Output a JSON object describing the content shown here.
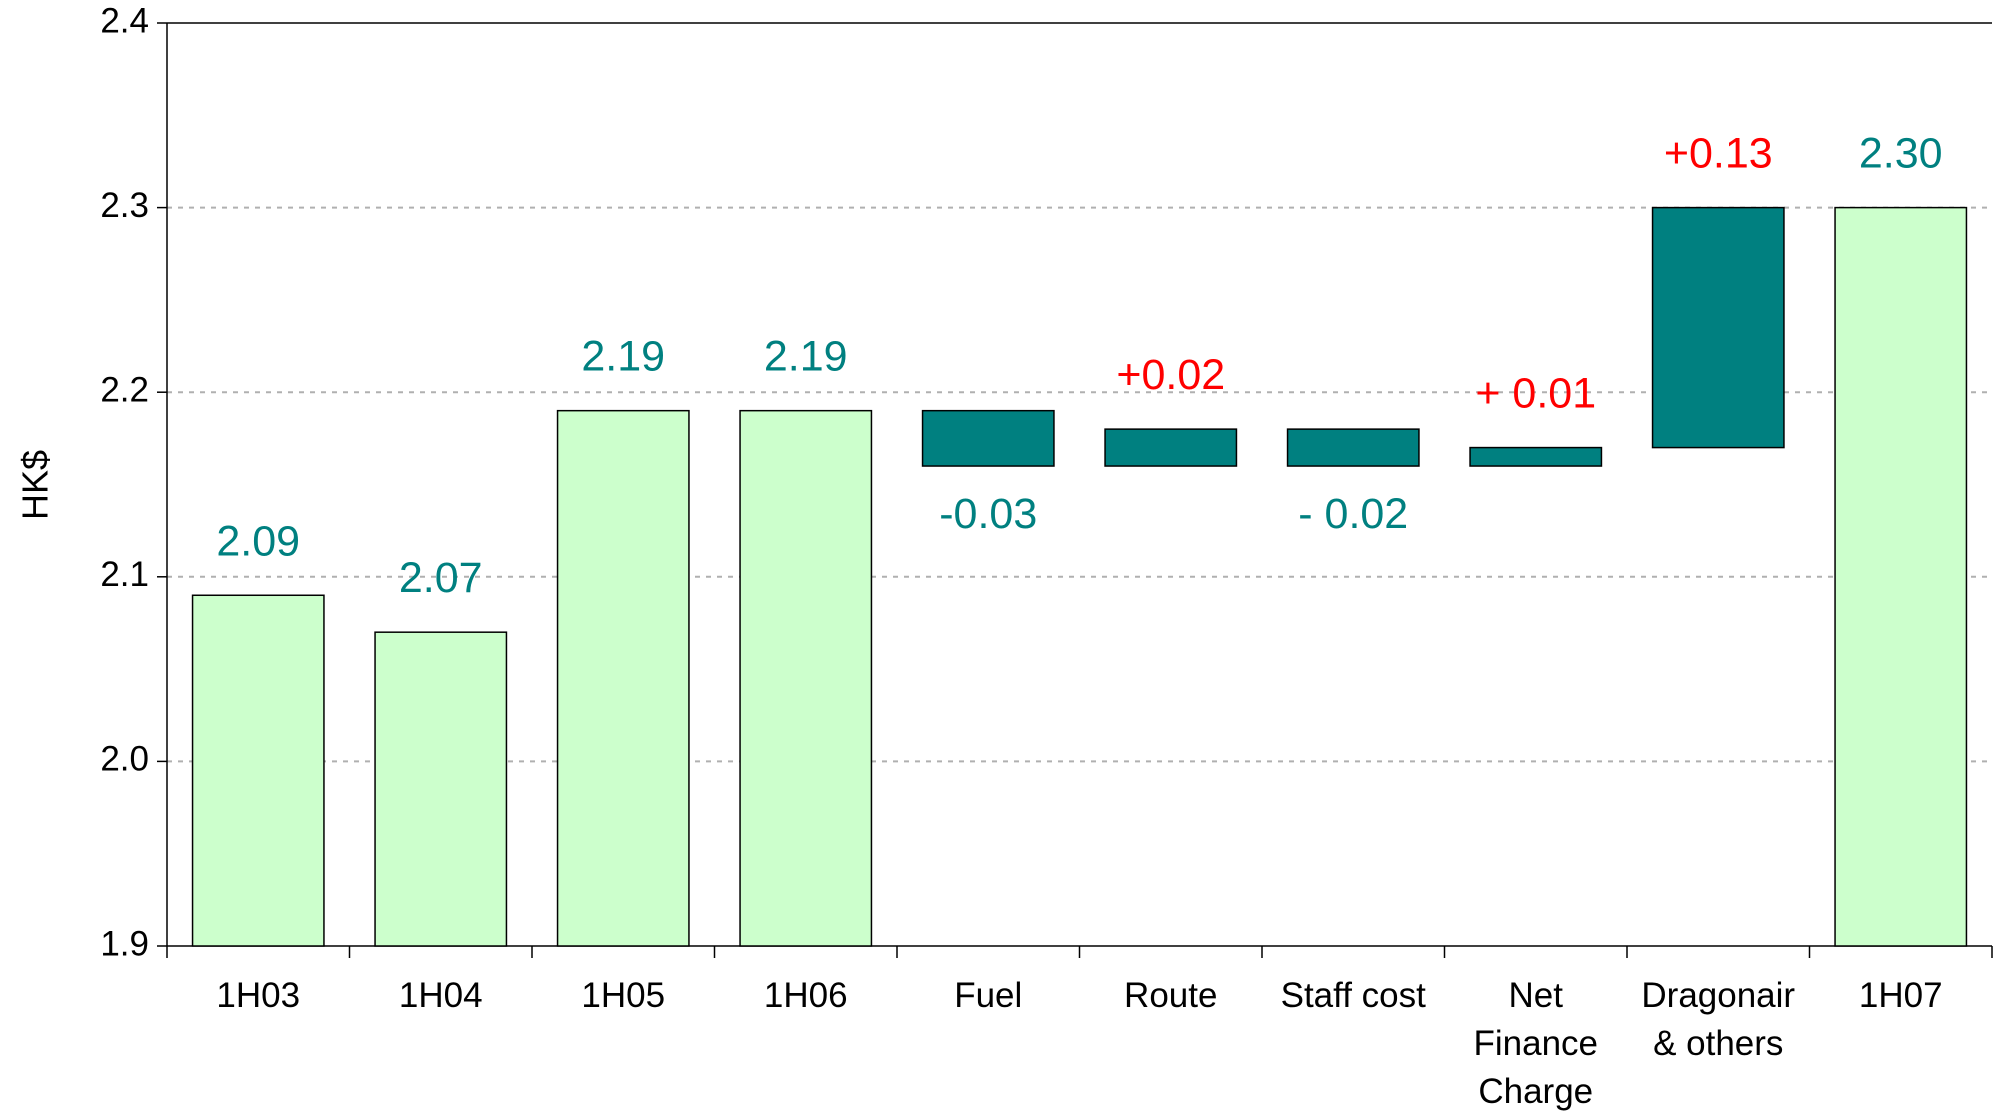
{
  "chart_data": {
    "type": "waterfall",
    "y_label": "HK$",
    "categories": [
      "1H03",
      "1H04",
      "1H05",
      "1H06",
      "Fuel",
      "Route",
      "Staff cost",
      "Net\nFinance\nCharge",
      "Dragonair\n& others",
      "1H07"
    ],
    "values": [
      2.09,
      2.07,
      2.19,
      2.19,
      -0.03,
      0.02,
      -0.02,
      0.01,
      0.13,
      2.3
    ],
    "value_labels": [
      "2.09",
      "2.07",
      "2.19",
      "2.19",
      "-0.03",
      "+0.02",
      "- 0.02",
      "+ 0.01",
      "+0.13",
      "2.30"
    ],
    "is_total": [
      true,
      true,
      true,
      true,
      false,
      false,
      false,
      false,
      false,
      true
    ],
    "total_color": "#ccffcc",
    "change_color": "#008080",
    "label_colors": {
      "total": "#008080",
      "increase": "#ff0000",
      "decrease": "#008080"
    },
    "ylim": [
      1.9,
      2.4
    ],
    "yticks": [
      {
        "value": 1.9,
        "label": "1.9"
      },
      {
        "value": 2.0,
        "label": "2.0"
      },
      {
        "value": 2.1,
        "label": "2.1"
      },
      {
        "value": 2.2,
        "label": "2.2"
      },
      {
        "value": 2.3,
        "label": "2.3"
      },
      {
        "value": 2.4,
        "label": "2.4"
      }
    ],
    "grid": true
  }
}
